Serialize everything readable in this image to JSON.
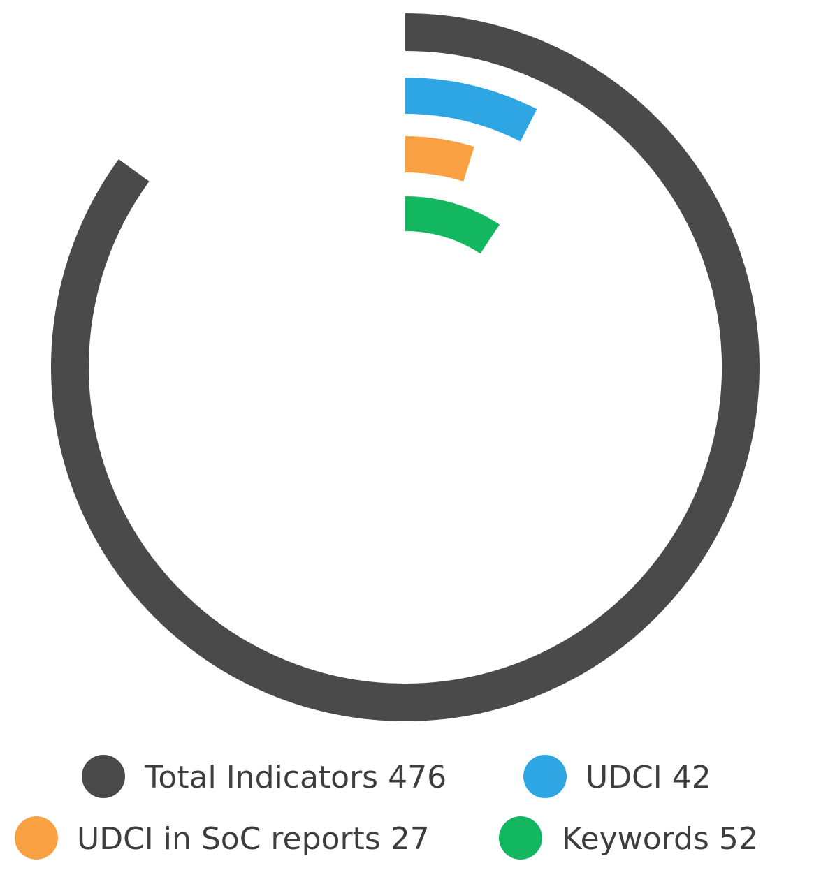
{
  "chart_data": {
    "type": "radial-bar",
    "series": [
      {
        "name": "Total Indicators",
        "value": 476,
        "color": "#4a4a4a",
        "label": "Total Indicators 476"
      },
      {
        "name": "UDCI",
        "value": 42,
        "color": "#2ea6e3",
        "label": "UDCI 42"
      },
      {
        "name": "UDCI in SoC reports",
        "value": 27,
        "color": "#f9a043",
        "label": "UDCI in SoC reports 27"
      },
      {
        "name": "Keywords",
        "value": 52,
        "color": "#13b760",
        "label": "Keywords 52"
      }
    ],
    "max": 560,
    "legend_position": "bottom"
  }
}
